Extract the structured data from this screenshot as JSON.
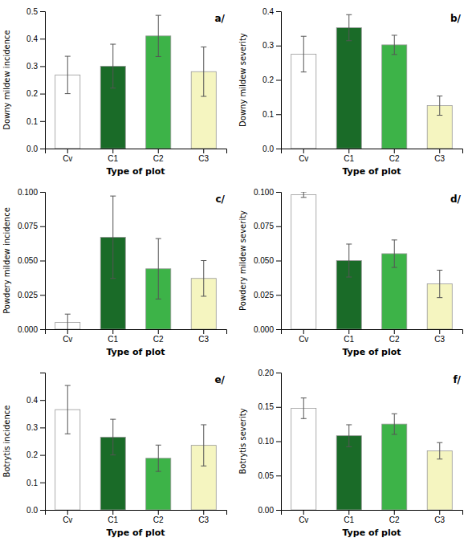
{
  "chart_data": [
    {
      "type": "bar",
      "annotation": "a/",
      "x_label": "Type of plot",
      "y_label": "Downy mildew incidence",
      "categories": [
        "Cv",
        "C1",
        "C2",
        "C3"
      ],
      "values": [
        0.268,
        0.3,
        0.41,
        0.28
      ],
      "errors": [
        0.068,
        0.08,
        0.075,
        0.09
      ],
      "colors": [
        "#ffffff",
        "#1a6b28",
        "#3db348",
        "#f5f5c0"
      ],
      "ylim": [
        0.0,
        0.5
      ],
      "yticks": [
        {
          "value": 0.0,
          "label": "0.0"
        },
        0.1,
        0.2,
        0.3,
        0.4,
        0.5
      ],
      "grid": false
    },
    {
      "type": "bar",
      "annotation": "b/",
      "x_label": "Type of plot",
      "y_label": "Downy mildew severity",
      "categories": [
        "Cv",
        "C1",
        "C2",
        "C3"
      ],
      "values": [
        0.275,
        0.352,
        0.302,
        0.125
      ],
      "errors": [
        0.052,
        0.038,
        0.028,
        0.028
      ],
      "colors": [
        "#ffffff",
        "#1a6b28",
        "#3db348",
        "#f5f5c0"
      ],
      "ylim": [
        0.0,
        0.4
      ],
      "yticks": [
        {
          "value": 0.0,
          "label": "0.0"
        },
        0.1,
        0.2,
        0.3,
        0.4
      ],
      "grid": false
    },
    {
      "type": "bar",
      "annotation": "c/",
      "x_label": "Type of plot",
      "y_label": "Powdery mildew incidence",
      "categories": [
        "Cv",
        "C1",
        "C2",
        "C3"
      ],
      "values": [
        0.005,
        0.067,
        0.044,
        0.037
      ],
      "errors": [
        0.006,
        0.03,
        0.022,
        0.013
      ],
      "colors": [
        "#ffffff",
        "#1a6b28",
        "#3db348",
        "#f5f5c0"
      ],
      "ylim": [
        0.0,
        0.1
      ],
      "yticks": [
        {
          "value": 0.0,
          "label": "0.000"
        },
        0.025,
        {
          "value": 0.05,
          "label": "0.050"
        },
        0.075,
        {
          "value": 0.1,
          "label": "0.100"
        }
      ],
      "grid": false
    },
    {
      "type": "bar",
      "annotation": "d/",
      "x_label": "Type of plot",
      "y_label": "Powdery mildew severity",
      "categories": [
        "Cv",
        "C1",
        "C2",
        "C3"
      ],
      "values": [
        0.098,
        0.05,
        0.055,
        0.033
      ],
      "errors": [
        0.002,
        0.012,
        0.01,
        0.01
      ],
      "colors": [
        "#ffffff",
        "#1a6b28",
        "#3db348",
        "#f5f5c0"
      ],
      "ylim": [
        0.0,
        0.1
      ],
      "yticks": [
        {
          "value": 0.0,
          "label": "0.000"
        },
        0.025,
        {
          "value": 0.05,
          "label": "0.050"
        },
        0.075,
        {
          "value": 0.1,
          "label": "0.100"
        }
      ],
      "grid": false
    },
    {
      "type": "bar",
      "annotation": "e/",
      "x_label": "Type of plot",
      "y_label": "Botrytis incidence",
      "categories": [
        "Cv",
        "C1",
        "C2",
        "C3"
      ],
      "values": [
        0.365,
        0.265,
        0.188,
        0.235
      ],
      "errors": [
        0.088,
        0.065,
        0.048,
        0.075
      ],
      "colors": [
        "#ffffff",
        "#1a6b28",
        "#3db348",
        "#f5f5c0"
      ],
      "ylim": [
        0.0,
        0.5
      ],
      "yticks": [
        {
          "value": 0.0,
          "label": "0.0"
        },
        0.1,
        0.2,
        0.3,
        0.4
      ],
      "grid": false
    },
    {
      "type": "bar",
      "annotation": "f/",
      "x_label": "Type of plot",
      "y_label": "Botrytis severity",
      "categories": [
        "Cv",
        "C1",
        "C2",
        "C3"
      ],
      "values": [
        0.148,
        0.108,
        0.125,
        0.086
      ],
      "errors": [
        0.015,
        0.016,
        0.015,
        0.012
      ],
      "colors": [
        "#ffffff",
        "#1a6b28",
        "#3db348",
        "#f5f5c0"
      ],
      "ylim": [
        0.0,
        0.2
      ],
      "yticks": [
        {
          "value": 0.0,
          "label": "0.00"
        },
        0.05,
        {
          "value": 0.1,
          "label": "0.10"
        },
        0.15,
        {
          "value": 0.2,
          "label": "0.20"
        }
      ],
      "grid": false
    }
  ]
}
